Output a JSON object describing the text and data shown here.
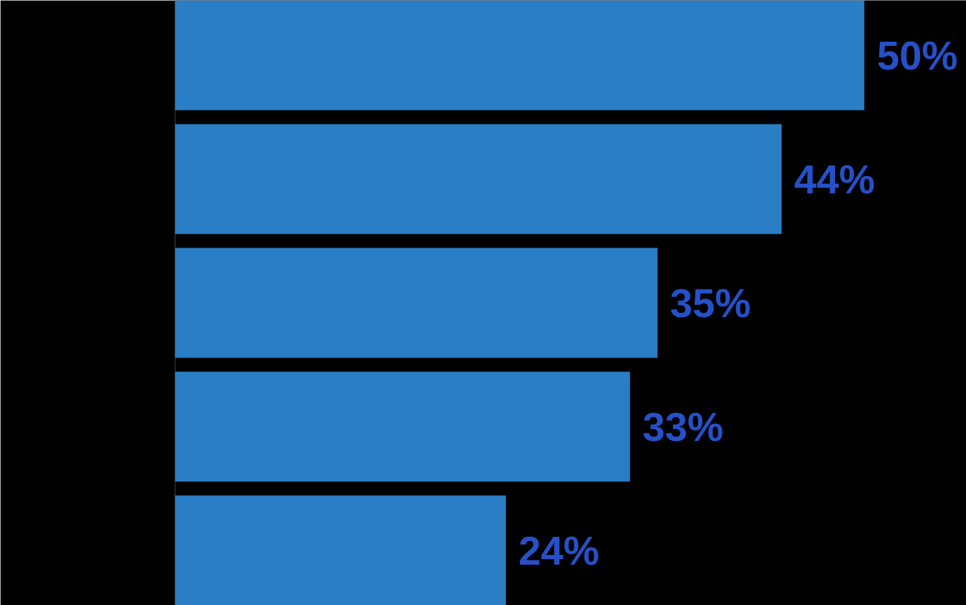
{
  "chart_data": {
    "type": "bar",
    "orientation": "horizontal",
    "tick_labels": false,
    "categories": [
      null,
      null,
      null,
      null,
      null
    ],
    "values": [
      50,
      44,
      35,
      33,
      24
    ],
    "value_labels": [
      "50%",
      "44%",
      "35%",
      "33%",
      "24%"
    ],
    "color": "#2a7ec6",
    "grid": false
  }
}
